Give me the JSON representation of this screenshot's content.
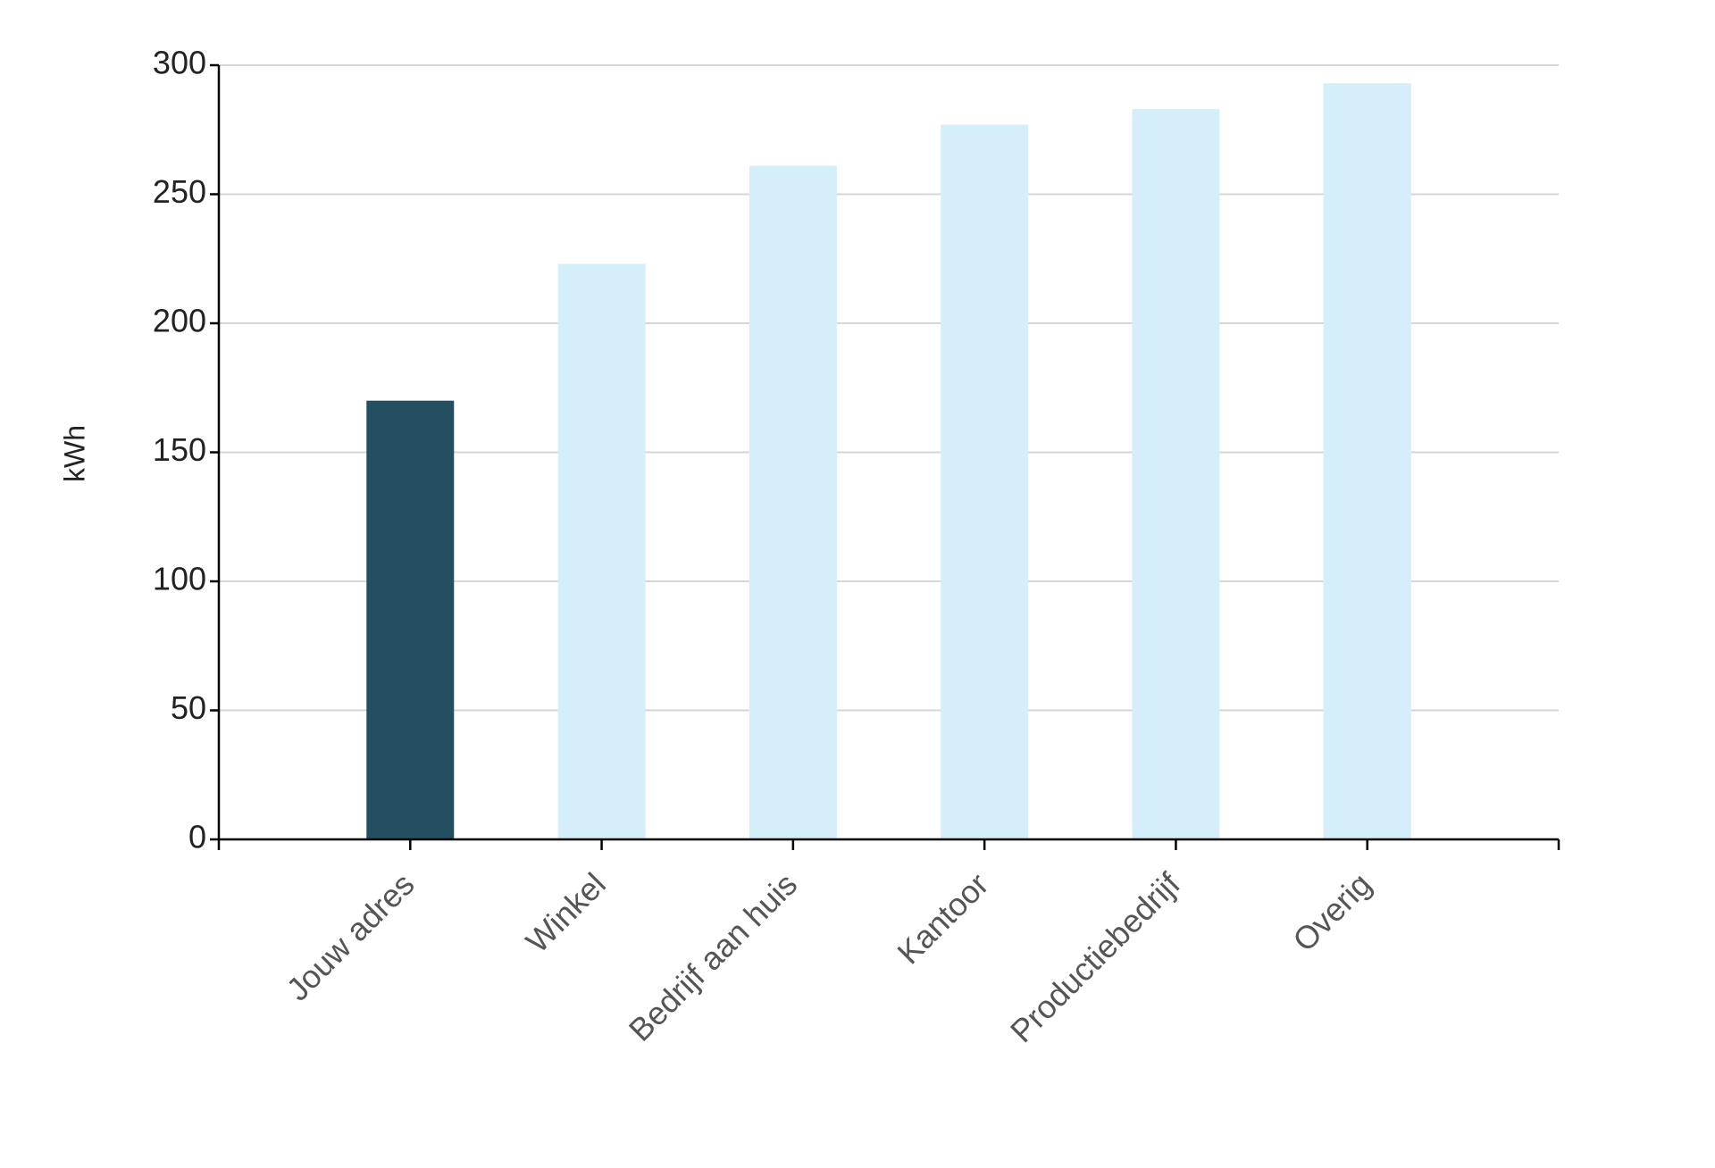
{
  "chart_data": {
    "type": "bar",
    "y_label": "kWh",
    "categories": [
      "Jouw adres",
      "Winkel",
      "Bedrijf aan huis",
      "Kantoor",
      "Productiebedrijf",
      "Overig"
    ],
    "values": [
      170,
      223,
      261,
      277,
      283,
      293
    ],
    "colors": [
      "#234f60",
      "#d4eff9",
      "#d4eff9",
      "#d4eff9",
      "#d4eff9",
      "#d4eff9"
    ],
    "ylim": [
      0,
      300
    ],
    "yticks": [
      0,
      50,
      100,
      150,
      200,
      250,
      300
    ],
    "grid": true
  }
}
